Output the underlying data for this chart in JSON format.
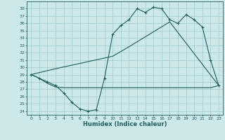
{
  "title": "",
  "xlabel": "Humidex (Indice chaleur)",
  "bg_color": "#cce8e8",
  "line_color": "#1a6060",
  "grid_color": "#a0cccc",
  "xlim": [
    -0.5,
    23.5
  ],
  "ylim": [
    23.5,
    39.0
  ],
  "yticks": [
    24,
    25,
    26,
    27,
    28,
    29,
    30,
    31,
    32,
    33,
    34,
    35,
    36,
    37,
    38
  ],
  "xticks": [
    0,
    1,
    2,
    3,
    4,
    5,
    6,
    7,
    8,
    9,
    10,
    11,
    12,
    13,
    14,
    15,
    16,
    17,
    18,
    19,
    20,
    21,
    22,
    23
  ],
  "series1_x": [
    0,
    1,
    2,
    3,
    4,
    5,
    6,
    7,
    8,
    9,
    10,
    11,
    12,
    13,
    14,
    15,
    16,
    17,
    18,
    19,
    20,
    21,
    22,
    23
  ],
  "series1_y": [
    29.0,
    28.5,
    28.0,
    27.5,
    26.5,
    25.2,
    24.3,
    24.0,
    24.2,
    28.5,
    34.5,
    35.7,
    36.5,
    38.0,
    37.5,
    38.2,
    38.0,
    36.5,
    36.0,
    37.2,
    36.5,
    35.5,
    31.0,
    27.5
  ],
  "series2_x": [
    0,
    1,
    2,
    3,
    4,
    5,
    6,
    7,
    8,
    9,
    10,
    11,
    12,
    13,
    14,
    15,
    16,
    17,
    18,
    19,
    20,
    21,
    22,
    23
  ],
  "series2_y": [
    29.0,
    28.5,
    27.8,
    27.3,
    27.2,
    27.2,
    27.2,
    27.2,
    27.2,
    27.2,
    27.2,
    27.2,
    27.2,
    27.2,
    27.2,
    27.2,
    27.2,
    27.2,
    27.2,
    27.2,
    27.2,
    27.2,
    27.2,
    27.5
  ],
  "series3_x": [
    0,
    3,
    10,
    12,
    17,
    23
  ],
  "series3_y": [
    29.0,
    29.8,
    31.5,
    32.8,
    36.2,
    27.5
  ]
}
